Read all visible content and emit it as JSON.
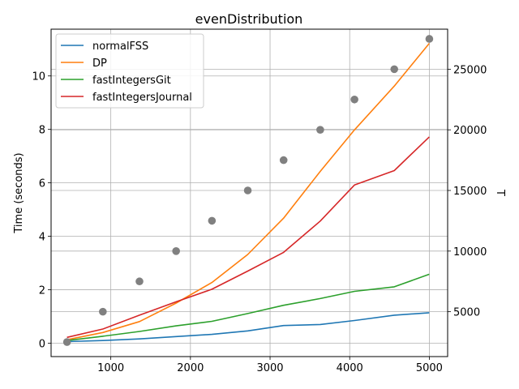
{
  "chart_data": {
    "type": "line",
    "title": "evenDistribution",
    "xlabel": "",
    "ylabel": "Time (seconds)",
    "y2label": "T",
    "grid": true,
    "legend_position": "top-left",
    "xlim": [
      250,
      5230
    ],
    "ylim": [
      -0.5,
      11.75
    ],
    "y2lim": [
      1300,
      28300
    ],
    "xticks": [
      1000,
      2000,
      3000,
      4000,
      5000
    ],
    "yticks": [
      0,
      2,
      4,
      6,
      8,
      10
    ],
    "y2ticks": [
      5000,
      10000,
      15000,
      20000,
      25000
    ],
    "x": [
      450,
      900,
      1360,
      1820,
      2270,
      2720,
      3170,
      3630,
      4060,
      4560,
      5000
    ],
    "series": [
      {
        "name": "normalFSS",
        "color": "#1f77b4",
        "values": [
          0.06,
          0.1,
          0.16,
          0.25,
          0.33,
          0.46,
          0.66,
          0.7,
          0.85,
          1.05,
          1.14
        ]
      },
      {
        "name": "DP",
        "color": "#ff7f0e",
        "values": [
          0.13,
          0.4,
          0.81,
          1.5,
          2.27,
          3.32,
          4.68,
          6.43,
          7.98,
          9.62,
          11.22
        ]
      },
      {
        "name": "fastIntegersGit",
        "color": "#2ca02c",
        "values": [
          0.1,
          0.26,
          0.44,
          0.65,
          0.82,
          1.11,
          1.42,
          1.67,
          1.94,
          2.11,
          2.58
        ]
      },
      {
        "name": "fastIntegersJournal",
        "color": "#d62728",
        "values": [
          0.22,
          0.53,
          1.05,
          1.55,
          2.02,
          2.7,
          3.4,
          4.57,
          5.92,
          6.46,
          7.72
        ]
      }
    ],
    "secondary_series": {
      "type": "scatter",
      "axis": "right",
      "color": "#808080",
      "values": [
        2500,
        5000,
        7500,
        10000,
        12500,
        15000,
        17500,
        20000,
        22500,
        25000,
        27500
      ]
    }
  }
}
